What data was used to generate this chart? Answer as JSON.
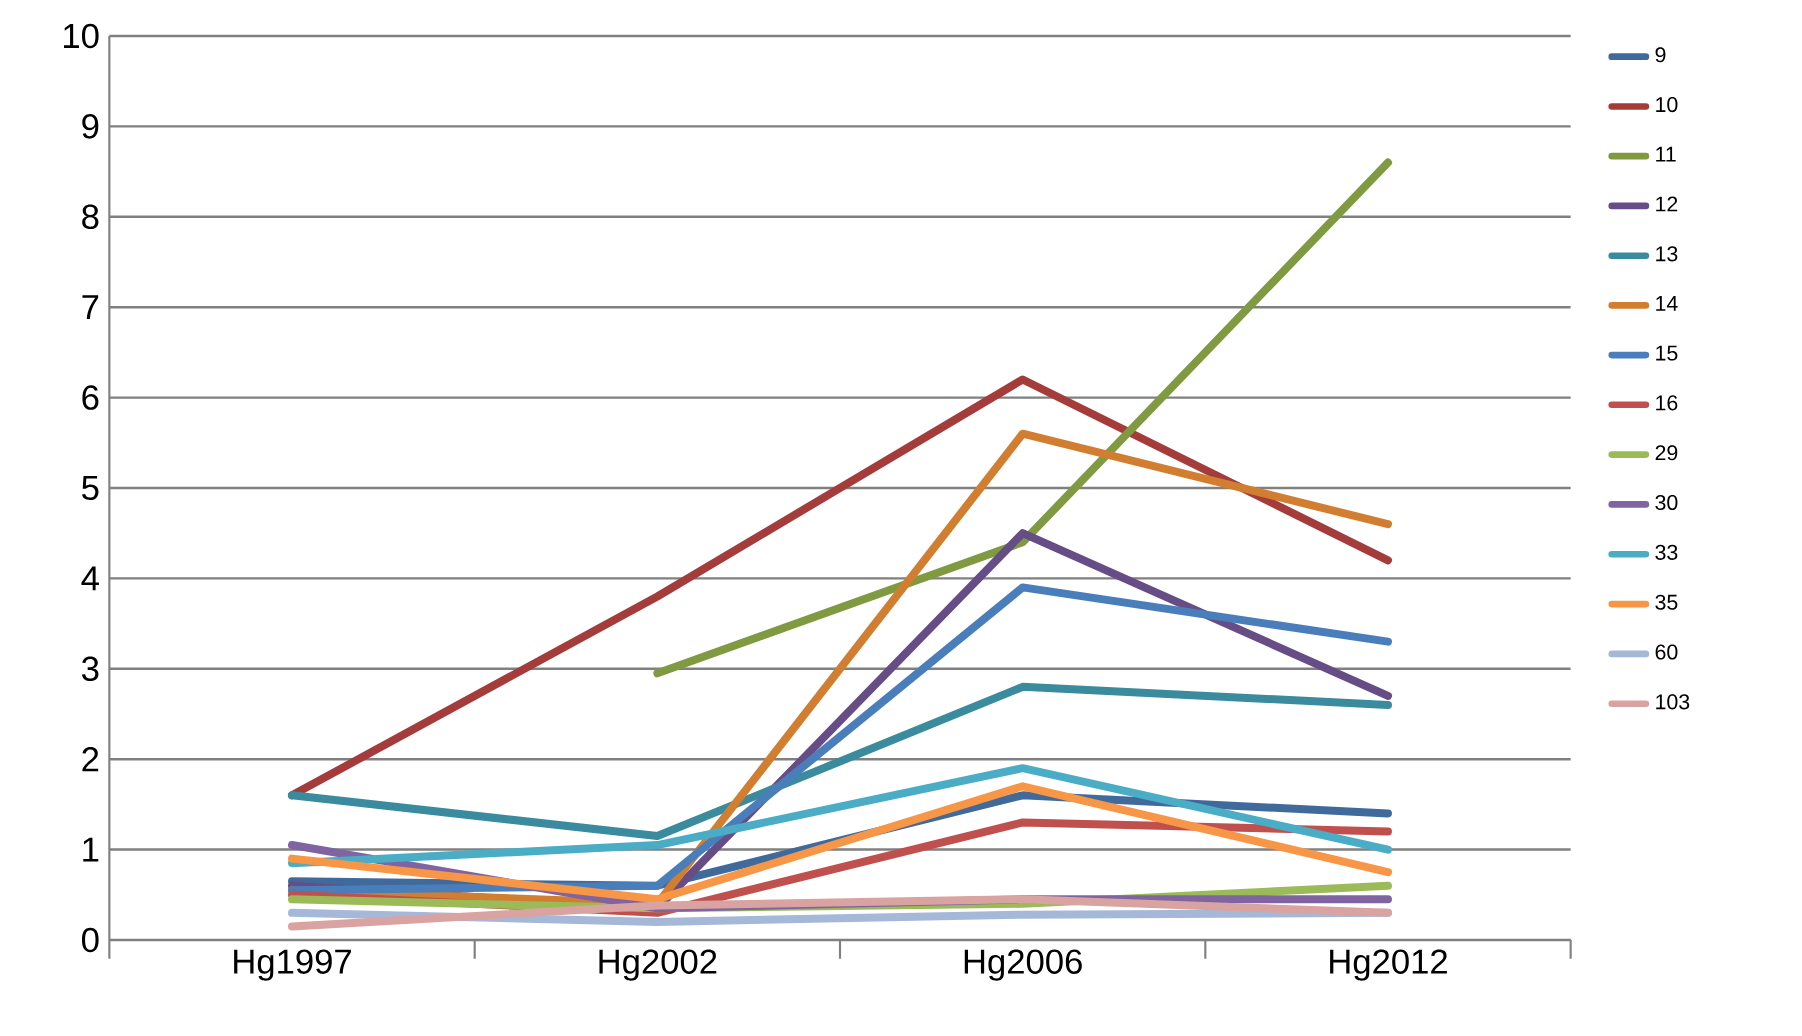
{
  "chart_data": {
    "type": "line",
    "categories": [
      "Hg1997",
      "Hg2002",
      "Hg2006",
      "Hg2012"
    ],
    "ylim": [
      0,
      10
    ],
    "yticks": [
      0,
      1,
      2,
      3,
      4,
      5,
      6,
      7,
      8,
      9,
      10
    ],
    "grid": "y",
    "legend": "right",
    "marker": "none",
    "line_style": "solid",
    "series": [
      {
        "name": "9",
        "color": "#3f6a9b",
        "values": [
          0.65,
          0.6,
          1.6,
          1.4
        ]
      },
      {
        "name": "10",
        "color": "#a33c3a",
        "values": [
          1.6,
          3.8,
          6.2,
          4.2
        ]
      },
      {
        "name": "11",
        "color": "#7f9a41",
        "values": [
          null,
          2.95,
          4.4,
          8.6
        ]
      },
      {
        "name": "12",
        "color": "#664d85",
        "values": [
          0.6,
          0.35,
          4.5,
          2.7
        ]
      },
      {
        "name": "13",
        "color": "#3a8b9e",
        "values": [
          1.6,
          1.15,
          2.8,
          2.6
        ]
      },
      {
        "name": "14",
        "color": "#d27e31",
        "values": [
          0.55,
          0.4,
          5.6,
          4.6
        ]
      },
      {
        "name": "15",
        "color": "#4a7ebb",
        "values": [
          0.55,
          0.6,
          3.9,
          3.3
        ]
      },
      {
        "name": "16",
        "color": "#c0504d",
        "values": [
          0.5,
          0.3,
          1.3,
          1.2
        ]
      },
      {
        "name": "29",
        "color": "#9bbb59",
        "values": [
          0.45,
          0.35,
          0.4,
          0.6
        ]
      },
      {
        "name": "30",
        "color": "#8064a2",
        "values": [
          1.05,
          0.35,
          0.45,
          0.45
        ]
      },
      {
        "name": "33",
        "color": "#4bacc6",
        "values": [
          0.85,
          1.05,
          1.9,
          1.0
        ]
      },
      {
        "name": "35",
        "color": "#f79646",
        "values": [
          0.9,
          0.45,
          1.7,
          0.75
        ]
      },
      {
        "name": "60",
        "color": "#a5b8d8",
        "values": [
          0.3,
          0.2,
          0.28,
          0.3
        ]
      },
      {
        "name": "103",
        "color": "#d9a3a1",
        "values": [
          0.15,
          0.38,
          0.45,
          0.3
        ]
      }
    ]
  }
}
